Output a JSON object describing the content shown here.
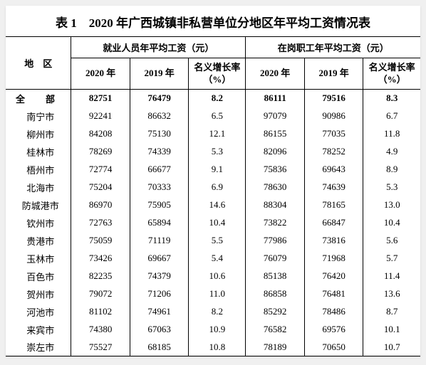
{
  "title": "表 1　2020 年广西城镇非私营单位分地区年平均工资情况表",
  "headers": {
    "region": "地　区",
    "group1": "就业人员年平均工资（元）",
    "group2": "在岗职工年平均工资（元）",
    "y2020": "2020 年",
    "y2019": "2019 年",
    "rate": "名义增长率\n（%）"
  },
  "rows": [
    {
      "region": "全　部",
      "e2020": "82751",
      "e2019": "76479",
      "erate": "8.2",
      "o2020": "86111",
      "o2019": "79516",
      "orate": "8.3",
      "bold": true,
      "spaced": true
    },
    {
      "region": "南宁市",
      "e2020": "92241",
      "e2019": "86632",
      "erate": "6.5",
      "o2020": "97079",
      "o2019": "90986",
      "orate": "6.7"
    },
    {
      "region": "柳州市",
      "e2020": "84208",
      "e2019": "75130",
      "erate": "12.1",
      "o2020": "86155",
      "o2019": "77035",
      "orate": "11.8"
    },
    {
      "region": "桂林市",
      "e2020": "78269",
      "e2019": "74339",
      "erate": "5.3",
      "o2020": "82096",
      "o2019": "78252",
      "orate": "4.9"
    },
    {
      "region": "梧州市",
      "e2020": "72774",
      "e2019": "66677",
      "erate": "9.1",
      "o2020": "75836",
      "o2019": "69643",
      "orate": "8.9"
    },
    {
      "region": "北海市",
      "e2020": "75204",
      "e2019": "70333",
      "erate": "6.9",
      "o2020": "78630",
      "o2019": "74639",
      "orate": "5.3"
    },
    {
      "region": "防城港市",
      "e2020": "86970",
      "e2019": "75905",
      "erate": "14.6",
      "o2020": "88304",
      "o2019": "78165",
      "orate": "13.0"
    },
    {
      "region": "钦州市",
      "e2020": "72763",
      "e2019": "65894",
      "erate": "10.4",
      "o2020": "73822",
      "o2019": "66847",
      "orate": "10.4"
    },
    {
      "region": "贵港市",
      "e2020": "75059",
      "e2019": "71119",
      "erate": "5.5",
      "o2020": "77986",
      "o2019": "73816",
      "orate": "5.6"
    },
    {
      "region": "玉林市",
      "e2020": "73426",
      "e2019": "69667",
      "erate": "5.4",
      "o2020": "76079",
      "o2019": "71968",
      "orate": "5.7"
    },
    {
      "region": "百色市",
      "e2020": "82235",
      "e2019": "74379",
      "erate": "10.6",
      "o2020": "85138",
      "o2019": "76420",
      "orate": "11.4"
    },
    {
      "region": "贺州市",
      "e2020": "79072",
      "e2019": "71206",
      "erate": "11.0",
      "o2020": "86858",
      "o2019": "76481",
      "orate": "13.6"
    },
    {
      "region": "河池市",
      "e2020": "81102",
      "e2019": "74961",
      "erate": "8.2",
      "o2020": "85292",
      "o2019": "78486",
      "orate": "8.7"
    },
    {
      "region": "来宾市",
      "e2020": "74380",
      "e2019": "67063",
      "erate": "10.9",
      "o2020": "76582",
      "o2019": "69576",
      "orate": "10.1"
    },
    {
      "region": "崇左市",
      "e2020": "75527",
      "e2019": "68185",
      "erate": "10.8",
      "o2020": "78189",
      "o2019": "70650",
      "orate": "10.7"
    }
  ]
}
